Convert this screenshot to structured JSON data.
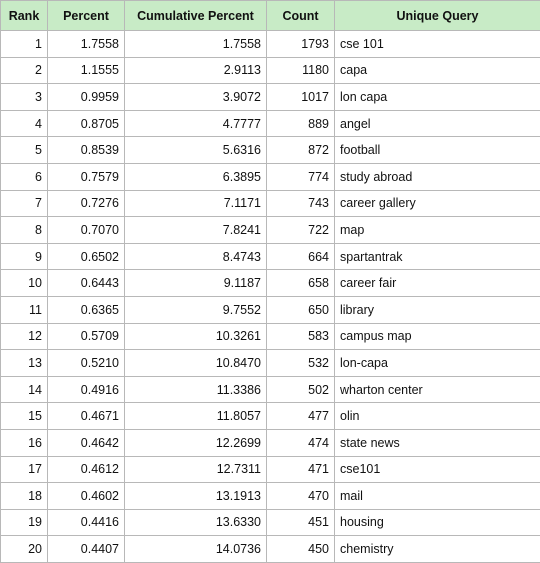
{
  "table": {
    "header_color": "#c8ebc6",
    "columns": [
      "Rank",
      "Percent",
      "Cumulative Percent",
      "Count",
      "Unique Query"
    ],
    "rows": [
      [
        "1",
        "1.7558",
        "1.7558",
        "1793",
        "cse 101"
      ],
      [
        "2",
        "1.1555",
        "2.9113",
        "1180",
        "capa"
      ],
      [
        "3",
        "0.9959",
        "3.9072",
        "1017",
        "lon capa"
      ],
      [
        "4",
        "0.8705",
        "4.7777",
        "889",
        "angel"
      ],
      [
        "5",
        "0.8539",
        "5.6316",
        "872",
        "football"
      ],
      [
        "6",
        "0.7579",
        "6.3895",
        "774",
        "study abroad"
      ],
      [
        "7",
        "0.7276",
        "7.1171",
        "743",
        "career gallery"
      ],
      [
        "8",
        "0.7070",
        "7.8241",
        "722",
        "map"
      ],
      [
        "9",
        "0.6502",
        "8.4743",
        "664",
        "spartantrak"
      ],
      [
        "10",
        "0.6443",
        "9.1187",
        "658",
        "career fair"
      ],
      [
        "11",
        "0.6365",
        "9.7552",
        "650",
        "library"
      ],
      [
        "12",
        "0.5709",
        "10.3261",
        "583",
        "campus map"
      ],
      [
        "13",
        "0.5210",
        "10.8470",
        "532",
        "lon-capa"
      ],
      [
        "14",
        "0.4916",
        "11.3386",
        "502",
        "wharton center"
      ],
      [
        "15",
        "0.4671",
        "11.8057",
        "477",
        "olin"
      ],
      [
        "16",
        "0.4642",
        "12.2699",
        "474",
        "state news"
      ],
      [
        "17",
        "0.4612",
        "12.7311",
        "471",
        "cse101"
      ],
      [
        "18",
        "0.4602",
        "13.1913",
        "470",
        "mail"
      ],
      [
        "19",
        "0.4416",
        "13.6330",
        "451",
        "housing"
      ],
      [
        "20",
        "0.4407",
        "14.0736",
        "450",
        "chemistry"
      ]
    ]
  }
}
